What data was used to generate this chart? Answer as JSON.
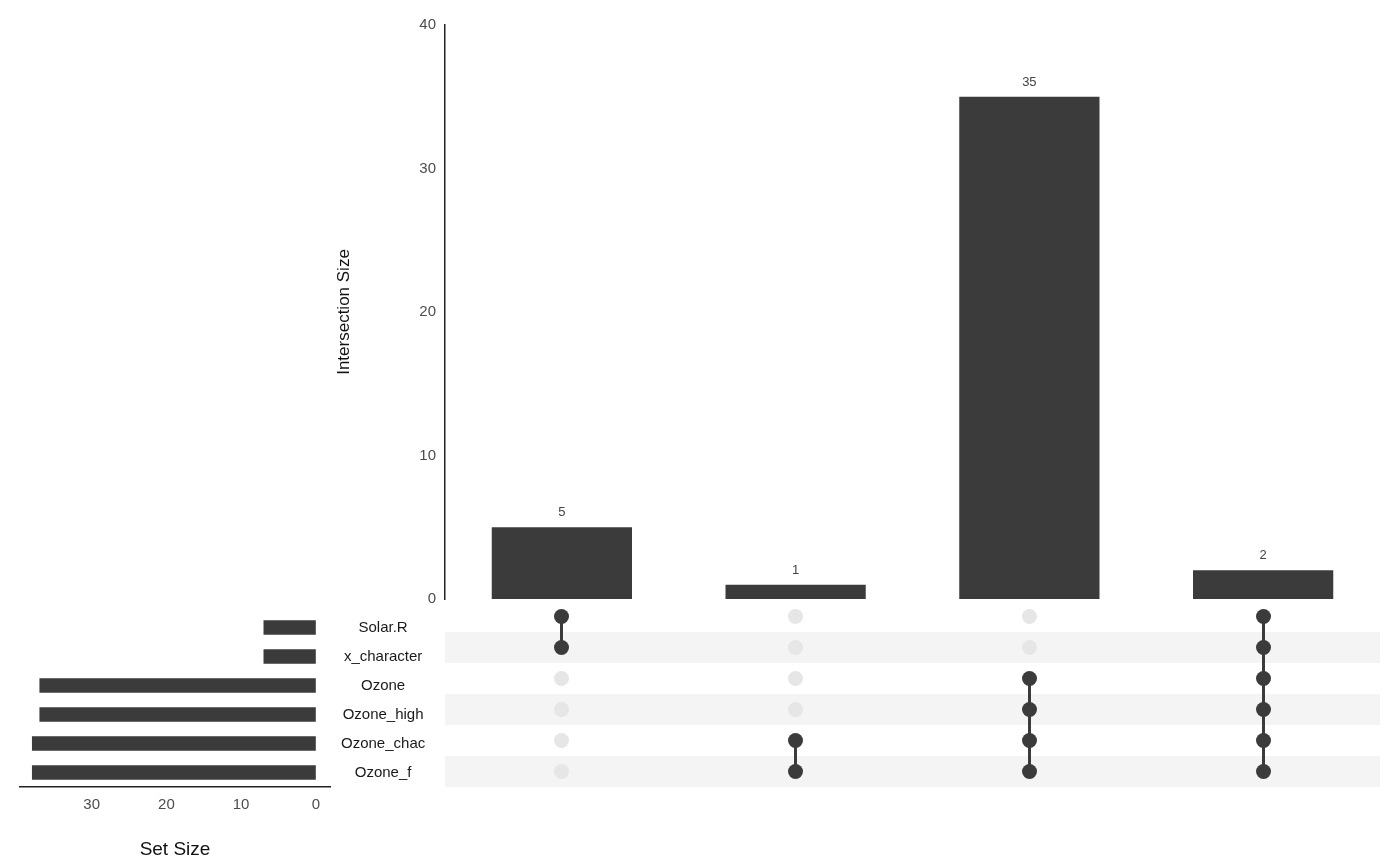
{
  "chart_data": [
    {
      "type": "bar",
      "ylabel": "Intersection Size",
      "categories": [
        null,
        null,
        null,
        null
      ],
      "values": [
        5,
        1,
        35,
        2
      ],
      "color": "#3b3b3b",
      "ylim": [
        0,
        40
      ],
      "yticks": [
        0,
        10,
        20,
        30,
        40
      ],
      "data_labels": true,
      "tick_labels": "y"
    },
    {
      "type": "bar",
      "orientation": "horizontal",
      "xlabel": "Set Size",
      "categories": [
        "Solar.R",
        "x_character",
        "Ozone",
        "Ozone_high",
        "Ozone_chac",
        "Ozone_f"
      ],
      "values": [
        7,
        7,
        37,
        37,
        38,
        38
      ],
      "color": "#3b3b3b",
      "xlim": [
        39.6,
        -1.9
      ],
      "xticks": [
        30,
        20,
        10,
        0
      ]
    }
  ]
}
